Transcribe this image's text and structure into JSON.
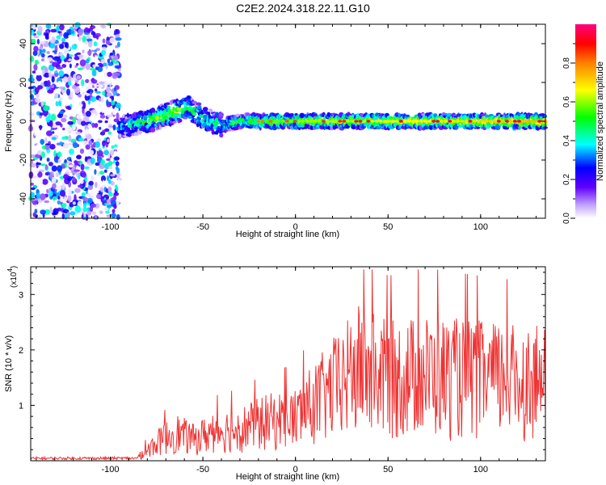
{
  "figure": {
    "title": "C2E2.2024.318.22.11.G10"
  },
  "chart_data": [
    {
      "type": "heatmap",
      "xlabel": "Height of straight line (km)",
      "ylabel": "Frequency (Hz)",
      "xlim": [
        -143,
        135
      ],
      "ylim": [
        -50,
        50
      ],
      "x_ticks": [
        -100,
        -50,
        0,
        50,
        100
      ],
      "y_ticks": [
        -40,
        -20,
        0,
        20,
        40
      ],
      "colorbar": {
        "label": "Normalized spectral amplitude",
        "range": [
          0,
          1
        ],
        "ticks": [
          0.0,
          0.2,
          0.4,
          0.6,
          0.8
        ],
        "colormap": [
          "#ffffff",
          "#a070ff",
          "#0000ff",
          "#00ffff",
          "#00ff00",
          "#ffff00",
          "#ff8000",
          "#ff0000",
          "#ff00a0"
        ]
      },
      "series": [
        {
          "x_range": [
            -143,
            -95
          ],
          "y_range": [
            -50,
            50
          ],
          "amplitude": [
            0.0,
            0.4
          ]
        },
        {
          "x": [
            -95,
            -80,
            -65,
            -58,
            -50,
            -40,
            -30,
            -20,
            0,
            50,
            100,
            135
          ],
          "y": [
            -3,
            0,
            5,
            7,
            2,
            -2,
            0,
            0,
            0,
            0,
            0,
            0
          ],
          "amplitude": [
            0.3,
            0.5,
            0.6,
            0.5,
            0.4,
            0.45,
            0.5,
            0.55,
            0.6,
            0.65,
            0.7,
            0.75
          ]
        }
      ]
    },
    {
      "type": "line",
      "xlabel": "Height of straight line (km)",
      "ylabel": "SNR (10 * v/v)",
      "y_multiplier": "(x10",
      "y_multiplier_exp": "4",
      "y_multiplier_close": ")",
      "xlim": [
        -143,
        135
      ],
      "ylim": [
        0,
        3.5
      ],
      "x_ticks": [
        -100,
        -50,
        0,
        50,
        100
      ],
      "y_ticks": [
        1,
        2,
        3
      ],
      "color": "#ee3333",
      "series": [
        {
          "envelope_x": [
            -143,
            -100,
            -85,
            -75,
            -65,
            -55,
            -45,
            -30,
            -15,
            0,
            10,
            25,
            35,
            50,
            70,
            100,
            135
          ],
          "envelope_y": [
            0.05,
            0.05,
            0.1,
            0.5,
            0.8,
            0.6,
            0.8,
            0.9,
            1.1,
            1.2,
            1.6,
            2.2,
            2.6,
            2.3,
            2.4,
            2.3,
            2.2
          ]
        }
      ]
    }
  ]
}
